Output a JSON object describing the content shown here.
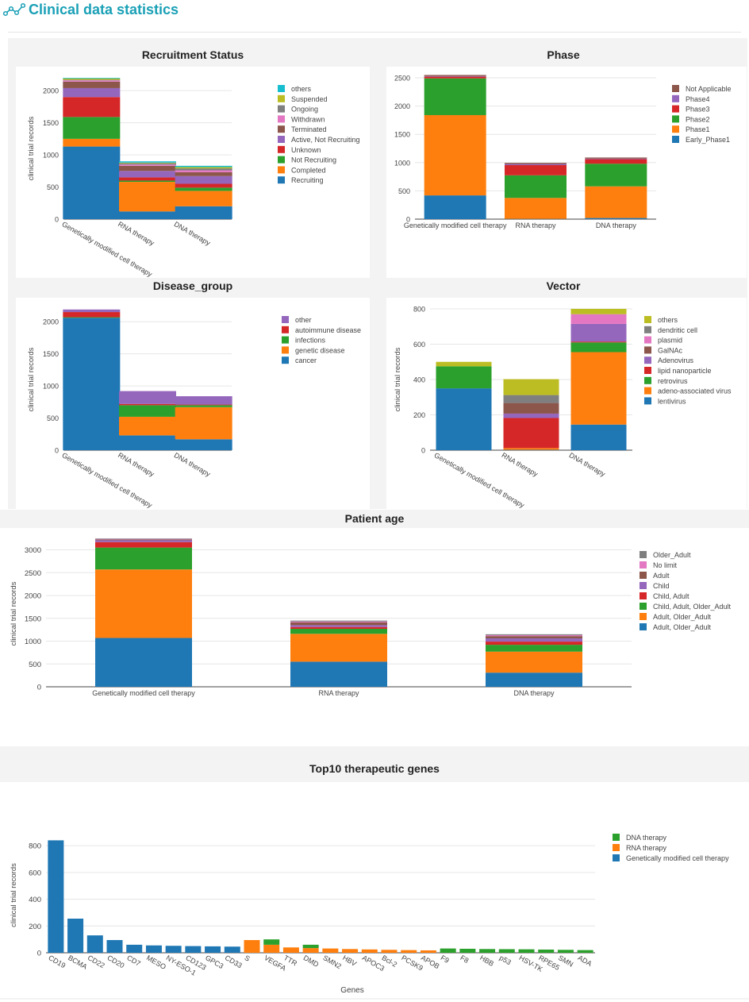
{
  "header": {
    "title": "Clinical data statistics",
    "icon": "network-icon"
  },
  "colors": {
    "accent": "#1aa0b6"
  },
  "chart_data": [
    {
      "id": "recruitment",
      "type": "bar",
      "stacked": true,
      "title": "Recruitment Status",
      "ylabel": "clinical trial records",
      "xlabel": "",
      "ylim": [
        0,
        2200
      ],
      "yticks": [
        0,
        500,
        1000,
        1500,
        2000
      ],
      "rotate": true,
      "categories": [
        "Genetically modified cell therapy",
        "RNA therapy",
        "DNA therapy"
      ],
      "series": [
        {
          "name": "Recruiting",
          "color": "#1f77b4",
          "values": [
            1130,
            120,
            200
          ]
        },
        {
          "name": "Completed",
          "color": "#ff7f0e",
          "values": [
            120,
            460,
            240
          ]
        },
        {
          "name": "Not Recruiting",
          "color": "#2ca02c",
          "values": [
            340,
            20,
            50
          ]
        },
        {
          "name": "Unknown",
          "color": "#d62728",
          "values": [
            310,
            50,
            60
          ]
        },
        {
          "name": "Active, Not Recruiting",
          "color": "#9467bd",
          "values": [
            140,
            100,
            120
          ]
        },
        {
          "name": "Terminated",
          "color": "#8c564b",
          "values": [
            100,
            80,
            60
          ]
        },
        {
          "name": "Withdrawn",
          "color": "#e377c2",
          "values": [
            20,
            20,
            30
          ]
        },
        {
          "name": "Ongoing",
          "color": "#7f7f7f",
          "values": [
            10,
            20,
            30
          ]
        },
        {
          "name": "Suspended",
          "color": "#bcbd22",
          "values": [
            20,
            10,
            20
          ]
        },
        {
          "name": "others",
          "color": "#17becf",
          "values": [
            10,
            20,
            20
          ]
        }
      ]
    },
    {
      "id": "phase",
      "type": "bar",
      "stacked": true,
      "title": "Phase",
      "ylabel": "clinical trial records",
      "xlabel": "",
      "ylim": [
        0,
        2500
      ],
      "yticks": [
        0,
        500,
        1000,
        1500,
        2000,
        2500
      ],
      "rotate": false,
      "categories": [
        "Genetically modified cell therapy",
        "RNA therapy",
        "DNA therapy"
      ],
      "series": [
        {
          "name": "Early_Phase1",
          "color": "#1f77b4",
          "values": [
            420,
            5,
            20
          ]
        },
        {
          "name": "Phase1",
          "color": "#ff7f0e",
          "values": [
            1420,
            370,
            560
          ]
        },
        {
          "name": "Phase2",
          "color": "#2ca02c",
          "values": [
            650,
            400,
            400
          ]
        },
        {
          "name": "Phase3",
          "color": "#d62728",
          "values": [
            30,
            180,
            80
          ]
        },
        {
          "name": "Phase4",
          "color": "#9467bd",
          "values": [
            10,
            20,
            10
          ]
        },
        {
          "name": "Not Applicable",
          "color": "#8c564b",
          "values": [
            20,
            20,
            20
          ]
        }
      ]
    },
    {
      "id": "disease",
      "type": "bar",
      "stacked": true,
      "title": "Disease_group",
      "ylabel": "clinical trial records",
      "xlabel": "",
      "ylim": [
        0,
        2200
      ],
      "yticks": [
        0,
        500,
        1000,
        1500,
        2000
      ],
      "rotate": true,
      "categories": [
        "Genetically modified cell therapy",
        "RNA therapy",
        "DNA therapy"
      ],
      "series": [
        {
          "name": "cancer",
          "color": "#1f77b4",
          "values": [
            2060,
            230,
            170
          ]
        },
        {
          "name": "genetic disease",
          "color": "#ff7f0e",
          "values": [
            0,
            290,
            500
          ]
        },
        {
          "name": "infections",
          "color": "#2ca02c",
          "values": [
            10,
            180,
            30
          ]
        },
        {
          "name": "autoimmune disease",
          "color": "#d62728",
          "values": [
            80,
            20,
            10
          ]
        },
        {
          "name": "other",
          "color": "#9467bd",
          "values": [
            40,
            200,
            130
          ]
        }
      ]
    },
    {
      "id": "vector",
      "type": "bar",
      "stacked": true,
      "title": "Vector",
      "ylabel": "clinical trial records",
      "xlabel": "",
      "ylim": [
        0,
        800
      ],
      "yticks": [
        0,
        200,
        400,
        600,
        800
      ],
      "rotate": true,
      "categories": [
        "Genetically modified cell therapy",
        "RNA therapy",
        "DNA therapy"
      ],
      "series": [
        {
          "name": "lentivirus",
          "color": "#1f77b4",
          "values": [
            350,
            2,
            145
          ]
        },
        {
          "name": "adeno-associated virus",
          "color": "#ff7f0e",
          "values": [
            0,
            10,
            410
          ]
        },
        {
          "name": "retrovirus",
          "color": "#2ca02c",
          "values": [
            125,
            0,
            55
          ]
        },
        {
          "name": "lipid nanoparticle",
          "color": "#d62728",
          "values": [
            0,
            170,
            5
          ]
        },
        {
          "name": "Adenovirus",
          "color": "#9467bd",
          "values": [
            0,
            25,
            100
          ]
        },
        {
          "name": "GalNAc",
          "color": "#8c564b",
          "values": [
            0,
            60,
            0
          ]
        },
        {
          "name": "plasmid",
          "color": "#e377c2",
          "values": [
            0,
            0,
            55
          ]
        },
        {
          "name": "dendritic cell",
          "color": "#7f7f7f",
          "values": [
            0,
            45,
            0
          ]
        },
        {
          "name": "others",
          "color": "#bcbd22",
          "values": [
            25,
            90,
            30
          ]
        }
      ]
    },
    {
      "id": "age",
      "type": "bar",
      "stacked": true,
      "title": "Patient age",
      "ylabel": "clinical trial records",
      "xlabel": "",
      "ylim": [
        0,
        3200
      ],
      "yticks": [
        0,
        500,
        1000,
        1500,
        2000,
        2500,
        3000
      ],
      "rotate": false,
      "categories": [
        "Genetically modified cell therapy",
        "RNA therapy",
        "DNA therapy"
      ],
      "series": [
        {
          "name": "Adult, Older_Adult",
          "color": "#1f77b4",
          "values": [
            1070,
            550,
            310
          ]
        },
        {
          "name": "Adult, Older_Adult",
          "color": "#ff7f0e",
          "values": [
            1500,
            610,
            460
          ]
        },
        {
          "name": "Child, Adult, Older_Adult",
          "color": "#2ca02c",
          "values": [
            480,
            110,
            150
          ]
        },
        {
          "name": "Child, Adult",
          "color": "#d62728",
          "values": [
            120,
            40,
            70
          ]
        },
        {
          "name": "Child",
          "color": "#9467bd",
          "values": [
            40,
            40,
            70
          ]
        },
        {
          "name": "Adult",
          "color": "#8c564b",
          "values": [
            20,
            60,
            50
          ]
        },
        {
          "name": "No limit",
          "color": "#e377c2",
          "values": [
            10,
            20,
            20
          ]
        },
        {
          "name": "Older_Adult",
          "color": "#7f7f7f",
          "values": [
            10,
            20,
            20
          ]
        }
      ]
    },
    {
      "id": "genes",
      "type": "bar",
      "stacked": true,
      "title": "Top10 therapeutic genes",
      "ylabel": "clinical trial records",
      "xlabel": "Genes",
      "ylim": [
        0,
        860
      ],
      "yticks": [
        0,
        200,
        400,
        600,
        800
      ],
      "rotate": true,
      "categories": [
        "CD19",
        "BCMA",
        "CD22",
        "CD20",
        "CD7",
        "MESO",
        "NY-ESO-1",
        "CD123",
        "GPC3",
        "CD33",
        "S",
        "VEGFA",
        "TTR",
        "DMD",
        "SMN2",
        "HBV",
        "APOC3",
        "Bcl-2",
        "PCSK9",
        "APOB",
        "F9",
        "F8",
        "HBB",
        "p53",
        "HSV-TK",
        "RPE65",
        "SMN",
        "ADA"
      ],
      "series": [
        {
          "name": "Genetically modified cell therapy",
          "color": "#1f77b4",
          "values": [
            840,
            255,
            130,
            95,
            60,
            55,
            52,
            50,
            48,
            46,
            0,
            0,
            0,
            0,
            0,
            0,
            0,
            0,
            0,
            0,
            0,
            0,
            0,
            0,
            0,
            0,
            0,
            0
          ]
        },
        {
          "name": "RNA therapy",
          "color": "#ff7f0e",
          "values": [
            0,
            0,
            0,
            0,
            0,
            0,
            0,
            0,
            0,
            0,
            95,
            60,
            40,
            35,
            32,
            28,
            25,
            22,
            20,
            18,
            0,
            0,
            0,
            0,
            0,
            0,
            0,
            0
          ]
        },
        {
          "name": "DNA therapy",
          "color": "#2ca02c",
          "values": [
            0,
            0,
            0,
            0,
            0,
            0,
            0,
            0,
            0,
            0,
            0,
            40,
            0,
            25,
            0,
            0,
            0,
            0,
            0,
            0,
            32,
            30,
            28,
            27,
            26,
            24,
            22,
            20
          ]
        }
      ]
    }
  ]
}
